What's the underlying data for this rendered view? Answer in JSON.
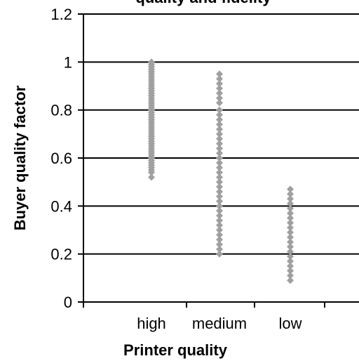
{
  "chart_data": {
    "type": "scatter",
    "title": "quality and fidelity",
    "xlabel": "Printer quality",
    "ylabel": "Buyer quality factor",
    "categories": [
      "high",
      "medium",
      "low"
    ],
    "ylim": [
      0,
      1.2
    ],
    "yticks": [
      "0",
      "0.2",
      "0.4",
      "0.6",
      "0.8",
      "1",
      "1.2"
    ],
    "grid": true,
    "legend": "none",
    "marker_color": "#a0a0a0",
    "series": [
      {
        "category": "high",
        "values": [
          1.0,
          0.99,
          0.98,
          0.97,
          0.96,
          0.95,
          0.94,
          0.93,
          0.92,
          0.91,
          0.9,
          0.89,
          0.88,
          0.87,
          0.86,
          0.85,
          0.84,
          0.83,
          0.82,
          0.81,
          0.8,
          0.79,
          0.78,
          0.77,
          0.76,
          0.75,
          0.74,
          0.73,
          0.72,
          0.71,
          0.7,
          0.69,
          0.68,
          0.67,
          0.66,
          0.65,
          0.64,
          0.63,
          0.62,
          0.61,
          0.6,
          0.59,
          0.58,
          0.57,
          0.56,
          0.55,
          0.54,
          0.52
        ]
      },
      {
        "category": "medium",
        "values": [
          0.95,
          0.93,
          0.91,
          0.89,
          0.87,
          0.85,
          0.83,
          0.8,
          0.78,
          0.76,
          0.74,
          0.72,
          0.7,
          0.68,
          0.66,
          0.64,
          0.62,
          0.6,
          0.58,
          0.56,
          0.54,
          0.52,
          0.5,
          0.48,
          0.46,
          0.44,
          0.42,
          0.4,
          0.38,
          0.36,
          0.34,
          0.32,
          0.3,
          0.28,
          0.26,
          0.24,
          0.22,
          0.2
        ]
      },
      {
        "category": "low",
        "values": [
          0.47,
          0.45,
          0.43,
          0.41,
          0.39,
          0.37,
          0.35,
          0.33,
          0.31,
          0.29,
          0.27,
          0.25,
          0.23,
          0.21,
          0.19,
          0.17,
          0.15,
          0.13,
          0.11,
          0.09
        ]
      }
    ]
  }
}
